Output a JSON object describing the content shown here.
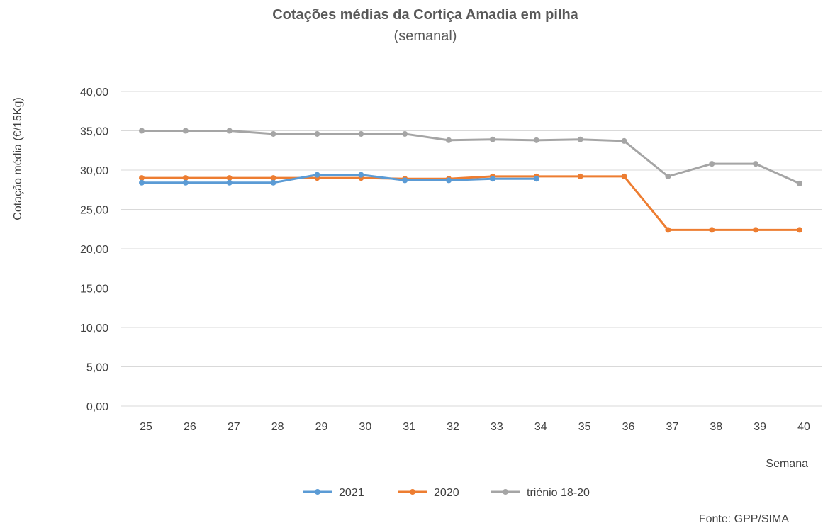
{
  "chart_data": {
    "type": "line",
    "title": "Cotações médias da Cortiça Amadia em pilha",
    "subtitle": "(semanal)",
    "xlabel": "Semana",
    "ylabel": "Cotação média (€/15Kg)",
    "ylim": [
      0,
      40
    ],
    "yticks": [
      "0,00",
      "5,00",
      "10,00",
      "15,00",
      "20,00",
      "25,00",
      "30,00",
      "35,00",
      "40,00"
    ],
    "x": [
      "25",
      "26",
      "27",
      "28",
      "29",
      "30",
      "31",
      "32",
      "33",
      "34",
      "35",
      "36",
      "37",
      "38",
      "39",
      "40"
    ],
    "grid": true,
    "legend_position": "bottom",
    "series": [
      {
        "name": "2021",
        "color": "#5b9bd5",
        "values": [
          28.4,
          28.4,
          28.4,
          28.4,
          29.4,
          29.4,
          28.7,
          28.7,
          28.9,
          28.9,
          null,
          null,
          null,
          null,
          null,
          null
        ]
      },
      {
        "name": "2020",
        "color": "#ed7d31",
        "values": [
          29.0,
          29.0,
          29.0,
          29.0,
          29.0,
          29.0,
          28.9,
          28.9,
          29.2,
          29.2,
          29.2,
          29.2,
          22.4,
          22.4,
          22.4,
          22.4
        ]
      },
      {
        "name": "triénio 18-20",
        "color": "#a5a5a5",
        "values": [
          35.0,
          35.0,
          35.0,
          34.6,
          34.6,
          34.6,
          34.6,
          33.8,
          33.9,
          33.8,
          33.9,
          33.7,
          29.2,
          30.8,
          30.8,
          28.3
        ]
      }
    ],
    "source": "Fonte: GPP/SIMA"
  }
}
